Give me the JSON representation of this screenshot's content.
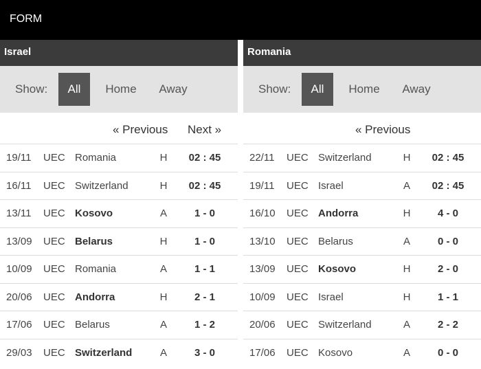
{
  "header": {
    "title": "FORM"
  },
  "panels": [
    {
      "team": "Israel",
      "show_label": "Show:",
      "filters": [
        "All",
        "Home",
        "Away"
      ],
      "pager": {
        "previous": "« Previous",
        "next": "Next »"
      },
      "matches": [
        {
          "date": "19/11",
          "comp": "UEC",
          "opponent": "Romania",
          "bold": false,
          "venue": "H",
          "score": "02 : 45"
        },
        {
          "date": "16/11",
          "comp": "UEC",
          "opponent": "Switzerland",
          "bold": false,
          "venue": "H",
          "score": "02 : 45"
        },
        {
          "date": "13/11",
          "comp": "UEC",
          "opponent": "Kosovo",
          "bold": true,
          "venue": "A",
          "score": "1 - 0"
        },
        {
          "date": "13/09",
          "comp": "UEC",
          "opponent": "Belarus",
          "bold": true,
          "venue": "H",
          "score": "1 - 0"
        },
        {
          "date": "10/09",
          "comp": "UEC",
          "opponent": "Romania",
          "bold": false,
          "venue": "A",
          "score": "1 - 1"
        },
        {
          "date": "20/06",
          "comp": "UEC",
          "opponent": "Andorra",
          "bold": true,
          "venue": "H",
          "score": "2 - 1"
        },
        {
          "date": "17/06",
          "comp": "UEC",
          "opponent": "Belarus",
          "bold": false,
          "venue": "A",
          "score": "1 - 2"
        },
        {
          "date": "29/03",
          "comp": "UEC",
          "opponent": "Switzerland",
          "bold": true,
          "venue": "A",
          "score": "3 - 0"
        }
      ]
    },
    {
      "team": "Romania",
      "show_label": "Show:",
      "filters": [
        "All",
        "Home",
        "Away"
      ],
      "pager": {
        "previous": "« Previous",
        "next": ""
      },
      "matches": [
        {
          "date": "22/11",
          "comp": "UEC",
          "opponent": "Switzerland",
          "bold": false,
          "venue": "H",
          "score": "02 : 45"
        },
        {
          "date": "19/11",
          "comp": "UEC",
          "opponent": "Israel",
          "bold": false,
          "venue": "A",
          "score": "02 : 45"
        },
        {
          "date": "16/10",
          "comp": "UEC",
          "opponent": "Andorra",
          "bold": true,
          "venue": "H",
          "score": "4 - 0"
        },
        {
          "date": "13/10",
          "comp": "UEC",
          "opponent": "Belarus",
          "bold": false,
          "venue": "A",
          "score": "0 - 0"
        },
        {
          "date": "13/09",
          "comp": "UEC",
          "opponent": "Kosovo",
          "bold": true,
          "venue": "H",
          "score": "2 - 0"
        },
        {
          "date": "10/09",
          "comp": "UEC",
          "opponent": "Israel",
          "bold": false,
          "venue": "H",
          "score": "1 - 1"
        },
        {
          "date": "20/06",
          "comp": "UEC",
          "opponent": "Switzerland",
          "bold": false,
          "venue": "A",
          "score": "2 - 2"
        },
        {
          "date": "17/06",
          "comp": "UEC",
          "opponent": "Kosovo",
          "bold": false,
          "venue": "A",
          "score": "0 - 0"
        }
      ]
    }
  ]
}
